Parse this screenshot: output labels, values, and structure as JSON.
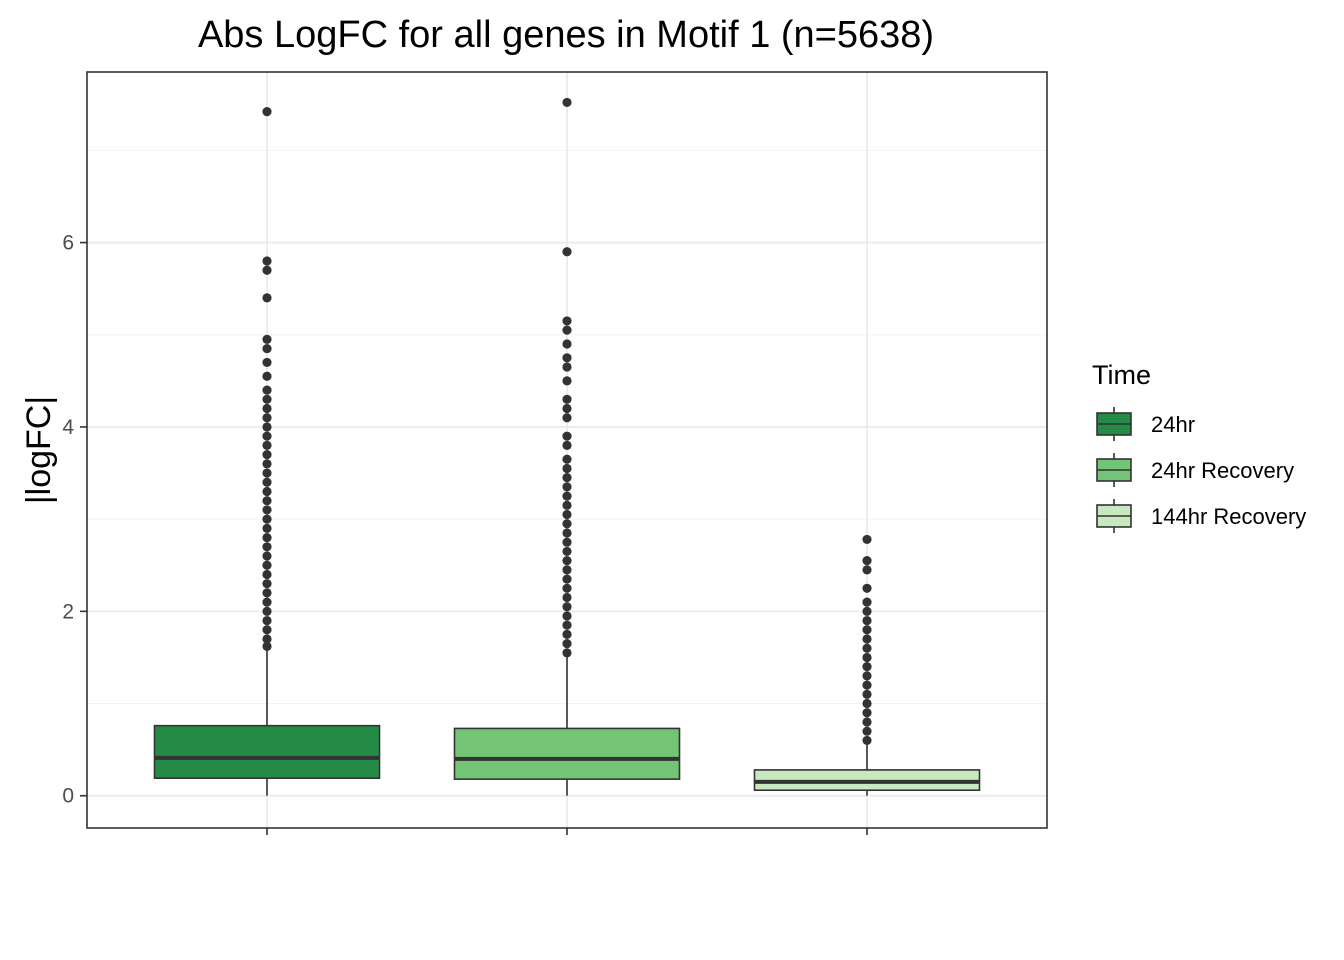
{
  "chart_data": {
    "type": "boxplot",
    "title": "Abs LogFC for all genes in Motif 1 (n=5638)",
    "xlabel": "",
    "ylabel": "|logFC|",
    "ylim": [
      -0.35,
      7.85
    ],
    "yticks": [
      0,
      2,
      4,
      6
    ],
    "grid": true,
    "legend": {
      "title": "Time",
      "position": "right"
    },
    "series": [
      {
        "name": "24hr",
        "color": "#238b45",
        "q1": 0.19,
        "median": 0.41,
        "q3": 0.76,
        "whisker_low": 0.0,
        "whisker_high": 1.6,
        "outliers": [
          1.62,
          1.7,
          1.8,
          1.9,
          2.0,
          2.1,
          2.2,
          2.3,
          2.4,
          2.5,
          2.6,
          2.7,
          2.8,
          2.9,
          3.0,
          3.1,
          3.2,
          3.3,
          3.4,
          3.5,
          3.6,
          3.7,
          3.8,
          3.9,
          4.0,
          4.1,
          4.2,
          4.3,
          4.4,
          4.55,
          4.7,
          4.85,
          4.95,
          5.4,
          5.7,
          5.8,
          7.42
        ]
      },
      {
        "name": "24hr Recovery",
        "color": "#74c476",
        "q1": 0.18,
        "median": 0.4,
        "q3": 0.73,
        "whisker_low": 0.0,
        "whisker_high": 1.53,
        "outliers": [
          1.55,
          1.65,
          1.75,
          1.85,
          1.95,
          2.05,
          2.15,
          2.25,
          2.35,
          2.45,
          2.55,
          2.65,
          2.75,
          2.85,
          2.95,
          3.05,
          3.15,
          3.25,
          3.35,
          3.45,
          3.55,
          3.65,
          3.8,
          3.9,
          4.1,
          4.2,
          4.3,
          4.5,
          4.65,
          4.75,
          4.9,
          5.05,
          5.15,
          5.9,
          7.52
        ]
      },
      {
        "name": "144hr Recovery",
        "color": "#c7e9c0",
        "q1": 0.06,
        "median": 0.15,
        "q3": 0.28,
        "whisker_low": 0.0,
        "whisker_high": 0.58,
        "outliers": [
          0.6,
          0.7,
          0.8,
          0.9,
          1.0,
          1.1,
          1.2,
          1.3,
          1.4,
          1.5,
          1.6,
          1.7,
          1.8,
          1.9,
          2.0,
          2.1,
          2.25,
          2.45,
          2.55,
          2.78
        ]
      }
    ]
  }
}
